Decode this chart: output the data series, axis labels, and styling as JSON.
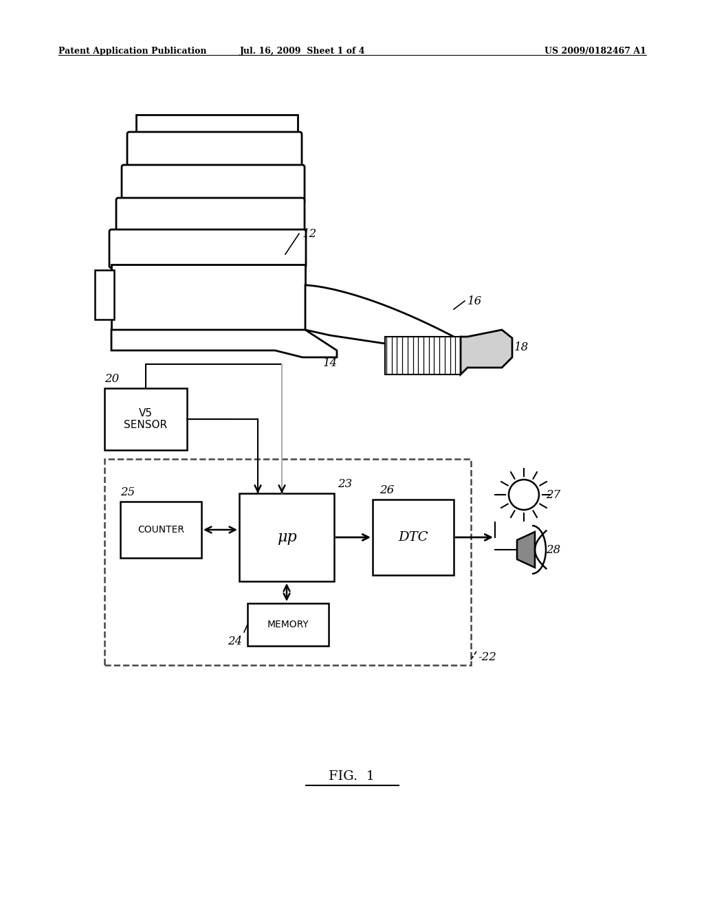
{
  "bg_color": "#ffffff",
  "header_left": "Patent Application Publication",
  "header_mid": "Jul. 16, 2009  Sheet 1 of 4",
  "header_right": "US 2009/0182467 A1",
  "fig_label": "FIG.  1",
  "label_12": "12",
  "label_14": "14",
  "label_16": "16",
  "label_18": "18",
  "label_20": "20",
  "label_22": "-22",
  "label_23": "23",
  "label_24": "24",
  "label_25": "25",
  "label_26": "26",
  "label_27": "27",
  "label_28": "28",
  "text_sensor": "V5\nSENSOR",
  "text_counter": "COUNTER",
  "text_mu": "μp",
  "text_dtc": "DTC",
  "text_memory": "MEMORY"
}
